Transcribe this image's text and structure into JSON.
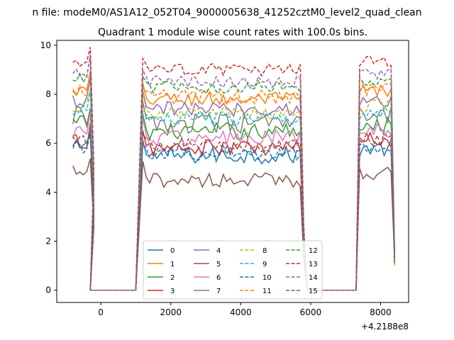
{
  "chart_data": {
    "type": "line",
    "suptitle": "n file: modeM0/AS1A12_052T04_9000005638_41252cztM0_level2_quad_clean",
    "title": "Quadrant 1 module wise count rates with 100.0s bins.",
    "xlabel": "",
    "ylabel": "",
    "x_offset_label": "+4.2188e8",
    "xlim": [
      -1260,
      8800
    ],
    "ylim": [
      -0.5,
      10.2
    ],
    "x_ticks": [
      0,
      2000,
      4000,
      6000,
      8000
    ],
    "x_tick_labels": [
      "0",
      "2000",
      "4000",
      "6000",
      "8000"
    ],
    "y_ticks": [
      0,
      2,
      4,
      6,
      8,
      10
    ],
    "y_tick_labels": [
      "0",
      "2",
      "4",
      "6",
      "8",
      "10"
    ],
    "grid": false,
    "legend_position": "lower-center",
    "segments": [
      [
        -800,
        -200
      ],
      [
        1200,
        5800
      ],
      [
        7400,
        8400
      ]
    ],
    "zero_ranges": [
      [
        -300,
        1000
      ],
      [
        5900,
        7300
      ]
    ],
    "series": [
      {
        "name": "0",
        "color": "#1f77b4",
        "style": "solid",
        "base": 5.5,
        "noise": 0.35
      },
      {
        "name": "1",
        "color": "#ff7f0e",
        "style": "solid",
        "base": 7.8,
        "noise": 0.3
      },
      {
        "name": "2",
        "color": "#2ca02c",
        "style": "solid",
        "base": 6.5,
        "noise": 0.35
      },
      {
        "name": "3",
        "color": "#d62728",
        "style": "solid",
        "base": 5.8,
        "noise": 0.35
      },
      {
        "name": "4",
        "color": "#9467bd",
        "style": "solid",
        "base": 7.4,
        "noise": 0.3
      },
      {
        "name": "5",
        "color": "#8c564b",
        "style": "solid",
        "base": 4.5,
        "noise": 0.3
      },
      {
        "name": "6",
        "color": "#e377c2",
        "style": "solid",
        "base": 6.2,
        "noise": 0.35
      },
      {
        "name": "7",
        "color": "#7f7f7f",
        "style": "solid",
        "base": 6.8,
        "noise": 0.4
      },
      {
        "name": "8",
        "color": "#bcbd22",
        "style": "dashed",
        "base": 7.2,
        "noise": 0.3
      },
      {
        "name": "9",
        "color": "#17becf",
        "style": "dashed",
        "base": 7.0,
        "noise": 0.3
      },
      {
        "name": "10",
        "color": "#1f77b4",
        "style": "dashed",
        "base": 5.6,
        "noise": 0.3
      },
      {
        "name": "11",
        "color": "#ff7f0e",
        "style": "dashed",
        "base": 7.9,
        "noise": 0.3
      },
      {
        "name": "12",
        "color": "#2ca02c",
        "style": "dashed",
        "base": 8.3,
        "noise": 0.25
      },
      {
        "name": "13",
        "color": "#d62728",
        "style": "dashed",
        "base": 9.0,
        "noise": 0.25
      },
      {
        "name": "14",
        "color": "#9467bd",
        "style": "dashed",
        "base": 8.5,
        "noise": 0.25
      },
      {
        "name": "15",
        "color": "#8c564b",
        "style": "dashed",
        "base": 5.9,
        "noise": 0.3
      }
    ]
  }
}
